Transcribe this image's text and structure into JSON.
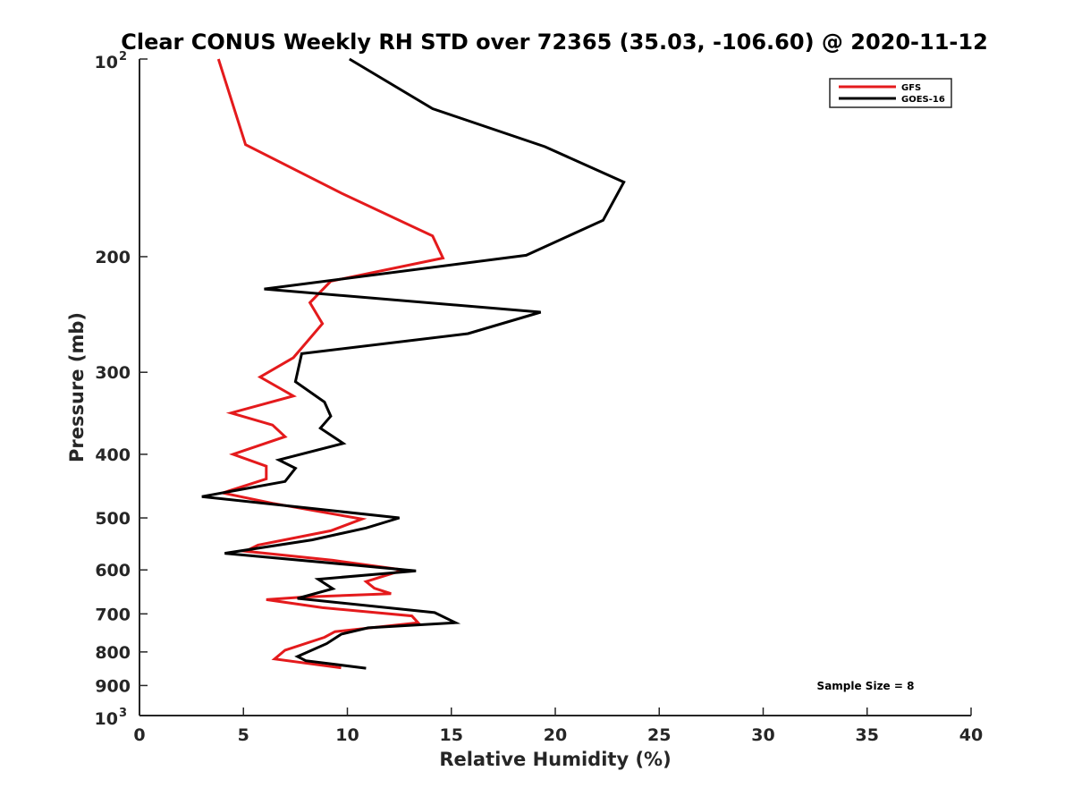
{
  "chart_data": {
    "type": "line",
    "title": "Clear CONUS Weekly RH STD over 72365 (35.03, -106.60) @ 2020-11-12",
    "xlabel": "Relative Humidity (%)",
    "ylabel": "Pressure (mb)",
    "xlim": [
      0,
      40
    ],
    "ylim": [
      100,
      1000
    ],
    "y_scale": "log",
    "y_reversed": true,
    "x_ticks": [
      0,
      5,
      10,
      15,
      20,
      25,
      30,
      35,
      40
    ],
    "x_tick_labels": [
      "0",
      "5",
      "10",
      "15",
      "20",
      "25",
      "30",
      "35",
      "40"
    ],
    "y_ticks": [
      {
        "value": 100,
        "base": "10",
        "exp": "2"
      },
      {
        "value": 200,
        "label": "200"
      },
      {
        "value": 300,
        "label": "300"
      },
      {
        "value": 400,
        "label": "400"
      },
      {
        "value": 500,
        "label": "500"
      },
      {
        "value": 600,
        "label": "600"
      },
      {
        "value": 700,
        "label": "700"
      },
      {
        "value": 800,
        "label": "800"
      },
      {
        "value": 900,
        "label": "900"
      },
      {
        "value": 1000,
        "base": "10",
        "exp": "3"
      }
    ],
    "legend": {
      "placement": "top-right"
    },
    "annotation": "Sample Size = 8",
    "grid": false,
    "series": [
      {
        "name": "GFS",
        "color": "#e41a1c",
        "points": [
          {
            "x": 3.8,
            "y": 100
          },
          {
            "x": 5.1,
            "y": 135
          },
          {
            "x": 9.7,
            "y": 160
          },
          {
            "x": 14.1,
            "y": 186
          },
          {
            "x": 14.6,
            "y": 201
          },
          {
            "x": 9.2,
            "y": 218
          },
          {
            "x": 8.2,
            "y": 235
          },
          {
            "x": 8.8,
            "y": 253
          },
          {
            "x": 7.4,
            "y": 285
          },
          {
            "x": 5.8,
            "y": 305
          },
          {
            "x": 7.4,
            "y": 326
          },
          {
            "x": 4.4,
            "y": 346
          },
          {
            "x": 6.4,
            "y": 361
          },
          {
            "x": 7.0,
            "y": 376
          },
          {
            "x": 4.5,
            "y": 400
          },
          {
            "x": 6.1,
            "y": 417
          },
          {
            "x": 6.1,
            "y": 436
          },
          {
            "x": 4.0,
            "y": 458
          },
          {
            "x": 6.4,
            "y": 475
          },
          {
            "x": 10.7,
            "y": 502
          },
          {
            "x": 9.2,
            "y": 523
          },
          {
            "x": 5.7,
            "y": 550
          },
          {
            "x": 5.1,
            "y": 562
          },
          {
            "x": 9.3,
            "y": 580
          },
          {
            "x": 12.7,
            "y": 600
          },
          {
            "x": 10.9,
            "y": 625
          },
          {
            "x": 11.3,
            "y": 640
          },
          {
            "x": 12.1,
            "y": 652
          },
          {
            "x": 7.9,
            "y": 660
          },
          {
            "x": 6.1,
            "y": 666
          },
          {
            "x": 8.8,
            "y": 685
          },
          {
            "x": 13.1,
            "y": 705
          },
          {
            "x": 13.4,
            "y": 722
          },
          {
            "x": 9.4,
            "y": 745
          },
          {
            "x": 8.9,
            "y": 760
          },
          {
            "x": 7.0,
            "y": 795
          },
          {
            "x": 6.5,
            "y": 820
          },
          {
            "x": 9.7,
            "y": 846
          }
        ]
      },
      {
        "name": "GOES-16",
        "color": "#000000",
        "points": [
          {
            "x": 10.1,
            "y": 100
          },
          {
            "x": 14.1,
            "y": 119
          },
          {
            "x": 19.5,
            "y": 136
          },
          {
            "x": 23.3,
            "y": 154
          },
          {
            "x": 22.3,
            "y": 176
          },
          {
            "x": 18.6,
            "y": 199
          },
          {
            "x": 6.0,
            "y": 224
          },
          {
            "x": 19.3,
            "y": 243
          },
          {
            "x": 15.8,
            "y": 262
          },
          {
            "x": 7.8,
            "y": 281
          },
          {
            "x": 7.5,
            "y": 310
          },
          {
            "x": 8.9,
            "y": 333
          },
          {
            "x": 9.2,
            "y": 350
          },
          {
            "x": 8.7,
            "y": 365
          },
          {
            "x": 9.8,
            "y": 385
          },
          {
            "x": 6.7,
            "y": 408
          },
          {
            "x": 7.5,
            "y": 420
          },
          {
            "x": 7.0,
            "y": 440
          },
          {
            "x": 3.0,
            "y": 464
          },
          {
            "x": 12.5,
            "y": 500
          },
          {
            "x": 10.9,
            "y": 518
          },
          {
            "x": 8.3,
            "y": 540
          },
          {
            "x": 4.1,
            "y": 566
          },
          {
            "x": 10.3,
            "y": 590
          },
          {
            "x": 13.3,
            "y": 602
          },
          {
            "x": 8.6,
            "y": 620
          },
          {
            "x": 9.3,
            "y": 641
          },
          {
            "x": 7.6,
            "y": 663
          },
          {
            "x": 14.2,
            "y": 697
          },
          {
            "x": 15.2,
            "y": 722
          },
          {
            "x": 11.0,
            "y": 735
          },
          {
            "x": 9.7,
            "y": 752
          },
          {
            "x": 9.0,
            "y": 777
          },
          {
            "x": 7.6,
            "y": 813
          },
          {
            "x": 8.0,
            "y": 825
          },
          {
            "x": 10.9,
            "y": 847
          }
        ]
      }
    ]
  }
}
